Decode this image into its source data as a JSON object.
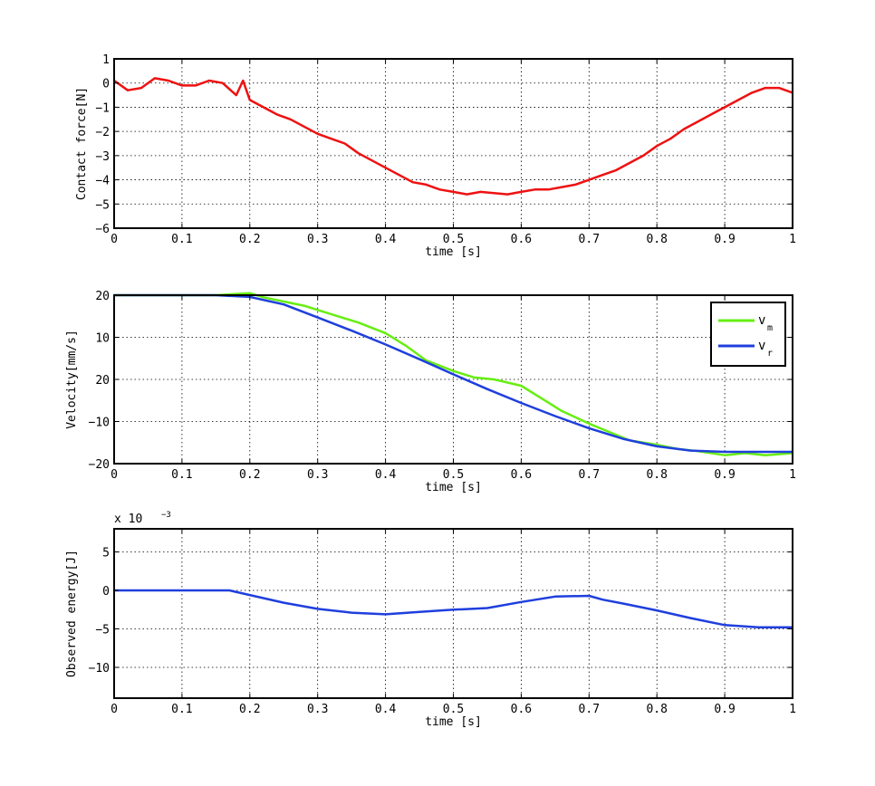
{
  "chart_data": [
    {
      "type": "line",
      "xlabel": "time [s]",
      "ylabel": "Contact force[N]",
      "xlim": [
        0,
        1
      ],
      "ylim": [
        -6,
        1
      ],
      "grid": true,
      "xticks": [
        "0",
        "0.1",
        "0.2",
        "0.3",
        "0.4",
        "0.5",
        "0.6",
        "0.7",
        "0.8",
        "0.9",
        "1"
      ],
      "yticks": [
        "1",
        "0",
        "−1",
        "−2",
        "−3",
        "−4",
        "−5",
        "−6"
      ],
      "series": [
        {
          "color": "#ee1111",
          "x": [
            0,
            0.02,
            0.04,
            0.06,
            0.08,
            0.1,
            0.12,
            0.14,
            0.16,
            0.18,
            0.19,
            0.2,
            0.22,
            0.24,
            0.26,
            0.28,
            0.3,
            0.32,
            0.34,
            0.36,
            0.38,
            0.4,
            0.42,
            0.44,
            0.46,
            0.48,
            0.5,
            0.52,
            0.54,
            0.56,
            0.58,
            0.6,
            0.62,
            0.64,
            0.66,
            0.68,
            0.7,
            0.72,
            0.74,
            0.76,
            0.78,
            0.8,
            0.82,
            0.84,
            0.86,
            0.88,
            0.9,
            0.92,
            0.94,
            0.96,
            0.98,
            1
          ],
          "y": [
            0.1,
            -0.3,
            -0.2,
            0.2,
            0.1,
            -0.1,
            -0.1,
            0.1,
            0.0,
            -0.5,
            0.1,
            -0.7,
            -1.0,
            -1.3,
            -1.5,
            -1.8,
            -2.1,
            -2.3,
            -2.5,
            -2.9,
            -3.2,
            -3.5,
            -3.8,
            -4.1,
            -4.2,
            -4.4,
            -4.5,
            -4.6,
            -4.5,
            -4.55,
            -4.6,
            -4.5,
            -4.4,
            -4.4,
            -4.3,
            -4.2,
            -4.0,
            -3.8,
            -3.6,
            -3.3,
            -3.0,
            -2.6,
            -2.3,
            -1.9,
            -1.6,
            -1.3,
            -1.0,
            -0.7,
            -0.4,
            -0.2,
            -0.2,
            -0.4
          ]
        }
      ]
    },
    {
      "type": "line",
      "xlabel": "time [s]",
      "ylabel": "Velocity[mm/s]",
      "xlim": [
        0,
        1
      ],
      "ylim": [
        -20,
        20
      ],
      "grid": true,
      "legend_position": "top-right",
      "xticks": [
        "0",
        "0.1",
        "0.2",
        "0.3",
        "0.4",
        "0.5",
        "0.6",
        "0.7",
        "0.8",
        "0.9",
        "1"
      ],
      "yticks": [
        "20",
        "10",
        "20",
        "−10",
        "−20"
      ],
      "series": [
        {
          "name": "v_m",
          "color": "#66ee11",
          "x": [
            0,
            0.05,
            0.1,
            0.15,
            0.2,
            0.22,
            0.25,
            0.28,
            0.3,
            0.33,
            0.36,
            0.4,
            0.43,
            0.46,
            0.5,
            0.53,
            0.56,
            0.6,
            0.63,
            0.66,
            0.7,
            0.73,
            0.76,
            0.8,
            0.83,
            0.86,
            0.9,
            0.93,
            0.96,
            1
          ],
          "y": [
            20,
            20,
            20,
            20,
            20.5,
            19.5,
            18.5,
            17.5,
            16.5,
            15,
            13.5,
            11,
            8,
            4.5,
            2,
            0.5,
            0,
            -1.5,
            -4.5,
            -7.5,
            -10.5,
            -12.5,
            -14.5,
            -15.5,
            -16.5,
            -17,
            -18,
            -17.5,
            -18,
            -17.5
          ]
        },
        {
          "name": "v_r",
          "color": "#1f3fdd",
          "x": [
            0,
            0.05,
            0.1,
            0.15,
            0.2,
            0.25,
            0.3,
            0.35,
            0.4,
            0.45,
            0.5,
            0.55,
            0.6,
            0.65,
            0.7,
            0.75,
            0.8,
            0.85,
            0.9,
            0.95,
            1
          ],
          "y": [
            20,
            20,
            20,
            20,
            19.6,
            17.8,
            14.7,
            11.6,
            8.3,
            4.8,
            1.2,
            -2.3,
            -5.6,
            -8.7,
            -11.6,
            -14.1,
            -15.9,
            -16.9,
            -17.2,
            -17.2,
            -17.2
          ]
        }
      ]
    },
    {
      "type": "line",
      "xlabel": "time [s]",
      "ylabel": "Observed energy[J]",
      "xlim": [
        0,
        1
      ],
      "ylim": [
        -14,
        8
      ],
      "scale_label": "x 10",
      "scale_exponent": "−3",
      "grid": true,
      "xticks": [
        "0",
        "0.1",
        "0.2",
        "0.3",
        "0.4",
        "0.5",
        "0.6",
        "0.7",
        "0.8",
        "0.9",
        "1"
      ],
      "yticks": [
        "5",
        "0",
        "−5",
        "−10"
      ],
      "series": [
        {
          "color": "#1f3fdd",
          "x": [
            0,
            0.05,
            0.1,
            0.15,
            0.17,
            0.2,
            0.25,
            0.3,
            0.35,
            0.4,
            0.45,
            0.5,
            0.55,
            0.6,
            0.65,
            0.7,
            0.72,
            0.75,
            0.8,
            0.85,
            0.9,
            0.95,
            1
          ],
          "y": [
            0,
            0,
            0,
            0,
            0,
            -0.6,
            -1.6,
            -2.4,
            -2.9,
            -3.1,
            -2.8,
            -2.5,
            -2.3,
            -1.5,
            -0.8,
            -0.7,
            -1.2,
            -1.7,
            -2.6,
            -3.6,
            -4.5,
            -4.8,
            -4.8
          ]
        }
      ]
    }
  ]
}
